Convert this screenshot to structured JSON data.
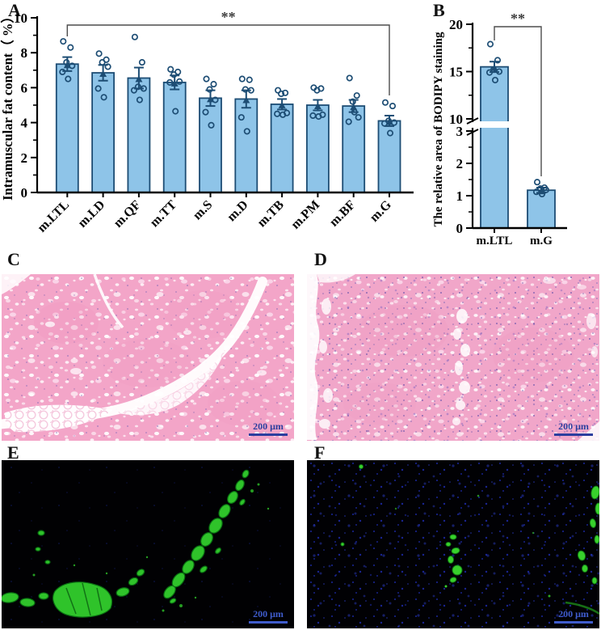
{
  "panels": {
    "A": {
      "label": "A"
    },
    "B": {
      "label": "B"
    },
    "C": {
      "label": "C",
      "scale_bar": "200 μm"
    },
    "D": {
      "label": "D",
      "scale_bar": "200 μm"
    },
    "E": {
      "label": "E",
      "scale_bar": "200 μm"
    },
    "F": {
      "label": "F",
      "scale_bar": "200 μm"
    }
  },
  "colors": {
    "bar_fill": "#8ec4e8",
    "bar_stroke": "#1d4d74",
    "axis": "#000000",
    "significance": "#4d4d4d",
    "he_pink": "#f3a5c8",
    "fluo_green": "#2fc32a",
    "dapi_blue": "#2030b8",
    "scale_bar_hist": "#2c3e9e",
    "scale_bar_fluo": "#3f5ccc"
  },
  "chart_data": [
    {
      "panel": "A",
      "type": "bar",
      "title": "",
      "xlabel": "",
      "ylabel": "Intramuscular fat content（ %）",
      "ylim": [
        0,
        10
      ],
      "yticks": [
        0,
        2,
        4,
        6,
        8,
        10
      ],
      "categories": [
        "m.LTL",
        "m.LD",
        "m.QF",
        "m.TT",
        "m.S",
        "m.D",
        "m.TB",
        "m.PM",
        "m.BF",
        "m.G"
      ],
      "values": [
        7.35,
        6.85,
        6.55,
        6.3,
        5.4,
        5.35,
        5.05,
        5.0,
        4.95,
        4.1
      ],
      "errors": [
        0.4,
        0.45,
        0.6,
        0.4,
        0.45,
        0.5,
        0.3,
        0.3,
        0.35,
        0.3
      ],
      "points": [
        [
          8.65,
          8.3,
          7.45,
          7.25,
          6.9,
          6.5
        ],
        [
          7.95,
          7.6,
          7.45,
          7.2,
          5.95,
          5.45
        ],
        [
          8.9,
          7.45,
          6.05,
          5.95,
          5.85,
          5.3
        ],
        [
          7.05,
          6.9,
          6.75,
          6.35,
          6.3,
          4.65
        ],
        [
          6.5,
          6.2,
          5.9,
          5.3,
          4.6,
          3.85
        ],
        [
          6.5,
          6.45,
          5.9,
          5.85,
          4.3,
          3.5
        ],
        [
          5.85,
          5.7,
          5.65,
          4.55,
          4.5,
          4.45
        ],
        [
          6.0,
          5.95,
          5.85,
          4.45,
          4.4,
          4.35
        ],
        [
          6.55,
          5.55,
          5.2,
          4.3,
          4.05,
          4.6
        ],
        [
          5.15,
          4.95,
          4.1,
          4.0,
          3.95,
          3.4
        ]
      ],
      "significance": {
        "label": "**",
        "from": "m.LTL",
        "to": "m.G"
      },
      "legend": null,
      "grid": false
    },
    {
      "panel": "B",
      "type": "bar",
      "title": "",
      "xlabel": "",
      "ylabel": "The relative area of  BODIPY staining",
      "axis_break": {
        "lower_range": [
          0,
          3
        ],
        "upper_range": [
          10,
          20
        ]
      },
      "yticks_lower": [
        0,
        1,
        2,
        3
      ],
      "yticks_upper": [
        10,
        15,
        20
      ],
      "categories": [
        "m.LTL",
        "m.G"
      ],
      "values": [
        15.5,
        1.17
      ],
      "errors": [
        0.55,
        0.08
      ],
      "points": [
        [
          17.9,
          16.2,
          15.2,
          15.0,
          14.9,
          14.1
        ],
        [
          1.42,
          1.25,
          1.22,
          1.18,
          1.12,
          1.05
        ]
      ],
      "significance": {
        "label": "**",
        "from": "m.LTL",
        "to": "m.G"
      },
      "legend": null,
      "grid": false
    }
  ]
}
